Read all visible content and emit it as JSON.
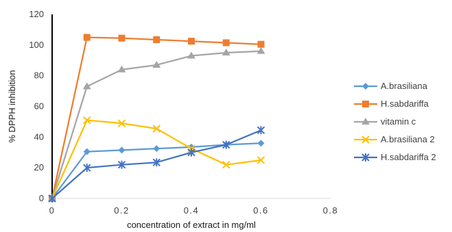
{
  "chart_data": {
    "type": "line",
    "xlabel": "concentration of extract in mg/ml",
    "ylabel": "% DPPH inhibition",
    "xlim": [
      0,
      0.8
    ],
    "ylim": [
      0,
      120
    ],
    "xticks": [
      0,
      0.2,
      0.4,
      0.6,
      0.8
    ],
    "xtick_labels": [
      "0",
      "0.2",
      "0.4",
      "0.6",
      "0.8"
    ],
    "yticks": [
      0,
      20,
      40,
      60,
      80,
      100,
      120
    ],
    "ytick_labels": [
      "0",
      "20",
      "40",
      "60",
      "80",
      "100",
      "120"
    ],
    "grid": false,
    "legend_position": "right",
    "x": [
      0,
      0.1,
      0.2,
      0.3,
      0.4,
      0.5,
      0.6
    ],
    "series": [
      {
        "name": "A.brasiliana",
        "color": "#5B9BD5",
        "marker": "diamond",
        "values": [
          0,
          30.5,
          31.5,
          32.5,
          33.5,
          35,
          36
        ]
      },
      {
        "name": "H.sabdariffa",
        "color": "#ED7D31",
        "marker": "square",
        "values": [
          0,
          105,
          104.5,
          103.5,
          102.5,
          101.5,
          100.5
        ]
      },
      {
        "name": "vitamin c",
        "color": "#A5A5A5",
        "marker": "triangle",
        "values": [
          0,
          73,
          84,
          87,
          93,
          95,
          96
        ]
      },
      {
        "name": "A.brasiliana 2",
        "color": "#FFC000",
        "marker": "x",
        "values": [
          0,
          51,
          49,
          45.5,
          32.5,
          22,
          25
        ]
      },
      {
        "name": "H.sabdariffa 2",
        "color": "#4472C4",
        "marker": "star",
        "values": [
          0,
          20,
          22,
          23.5,
          30,
          35,
          44.5
        ]
      }
    ]
  }
}
